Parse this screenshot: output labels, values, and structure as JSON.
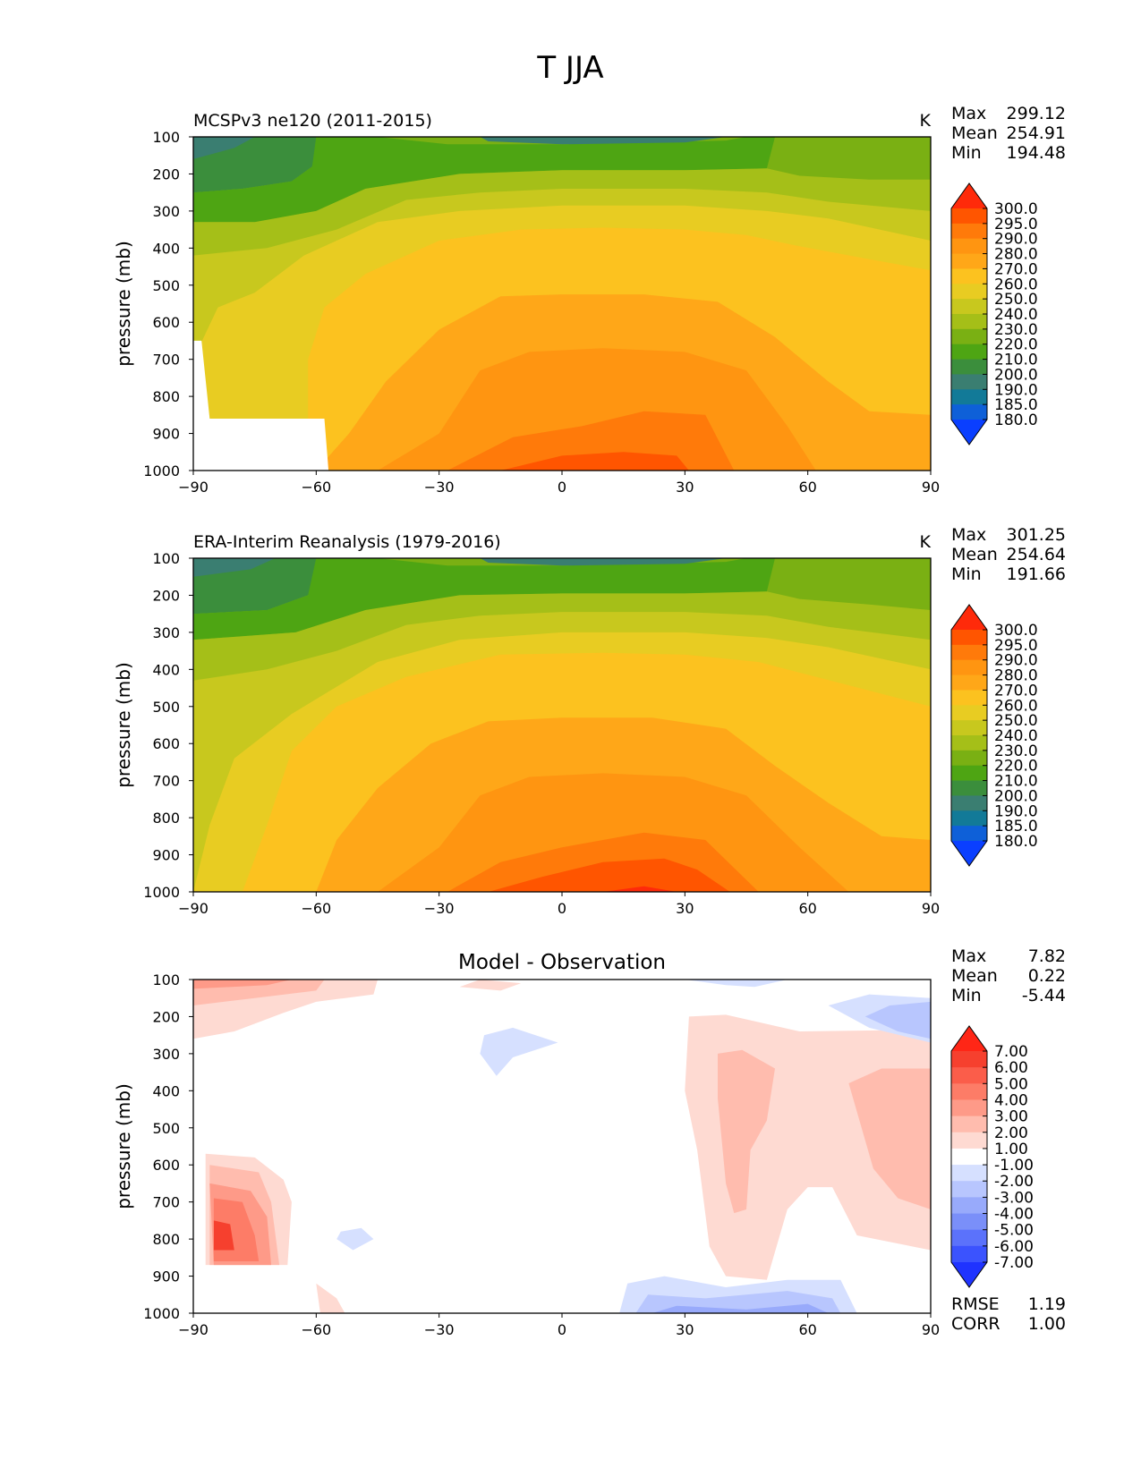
{
  "figure": {
    "title": "T JJA"
  },
  "chart_data": [
    {
      "type": "contour",
      "id": "model",
      "title_left": "MCSPv3 ne120 (2011-2015)",
      "title_center": "",
      "units": "K",
      "ylabel": "pressure (mb)",
      "x_ticks": [
        "−90",
        "−60",
        "−30",
        "0",
        "30",
        "60",
        "90"
      ],
      "y_ticks": [
        "100",
        "200",
        "300",
        "400",
        "500",
        "600",
        "700",
        "800",
        "900",
        "1000"
      ],
      "xlim": [
        -90,
        90
      ],
      "ylim": [
        1000,
        100
      ],
      "stats": [
        {
          "label": "Max",
          "value": "299.12"
        },
        {
          "label": "Mean",
          "value": "254.91"
        },
        {
          "label": "Min",
          "value": "194.48"
        }
      ],
      "colorbar": {
        "levels": [
          "300.0",
          "295.0",
          "290.0",
          "280.0",
          "270.0",
          "260.0",
          "250.0",
          "240.0",
          "230.0",
          "220.0",
          "210.0",
          "200.0",
          "190.0",
          "185.0",
          "180.0"
        ],
        "colors": [
          "#ff2a0a",
          "#ff5500",
          "#ff7a0a",
          "#ff9511",
          "#ffa718",
          "#fcc21f",
          "#e8cc22",
          "#c8c81e",
          "#a5bf18",
          "#7ab013",
          "#4ea513",
          "#3b8e3c",
          "#3a7e71",
          "#127a98",
          "#0e60d8",
          "#0a3fff"
        ]
      }
    },
    {
      "type": "contour",
      "id": "obs",
      "title_left": "ERA-Interim Reanalysis (1979-2016)",
      "title_center": "",
      "units": "K",
      "ylabel": "pressure (mb)",
      "x_ticks": [
        "−90",
        "−60",
        "−30",
        "0",
        "30",
        "60",
        "90"
      ],
      "y_ticks": [
        "100",
        "200",
        "300",
        "400",
        "500",
        "600",
        "700",
        "800",
        "900",
        "1000"
      ],
      "xlim": [
        -90,
        90
      ],
      "ylim": [
        1000,
        100
      ],
      "stats": [
        {
          "label": "Max",
          "value": "301.25"
        },
        {
          "label": "Mean",
          "value": "254.64"
        },
        {
          "label": "Min",
          "value": "191.66"
        }
      ],
      "colorbar": {
        "levels": [
          "300.0",
          "295.0",
          "290.0",
          "280.0",
          "270.0",
          "260.0",
          "250.0",
          "240.0",
          "230.0",
          "220.0",
          "210.0",
          "200.0",
          "190.0",
          "185.0",
          "180.0"
        ],
        "colors": [
          "#ff2a0a",
          "#ff5500",
          "#ff7a0a",
          "#ff9511",
          "#ffa718",
          "#fcc21f",
          "#e8cc22",
          "#c8c81e",
          "#a5bf18",
          "#7ab013",
          "#4ea513",
          "#3b8e3c",
          "#3a7e71",
          "#127a98",
          "#0e60d8",
          "#0a3fff"
        ]
      }
    },
    {
      "type": "contour",
      "id": "diff",
      "title_left": "",
      "title_center": "Model - Observation",
      "units": "",
      "ylabel": "pressure (mb)",
      "x_ticks": [
        "−90",
        "−60",
        "−30",
        "0",
        "30",
        "60",
        "90"
      ],
      "y_ticks": [
        "100",
        "200",
        "300",
        "400",
        "500",
        "600",
        "700",
        "800",
        "900",
        "1000"
      ],
      "xlim": [
        -90,
        90
      ],
      "ylim": [
        1000,
        100
      ],
      "stats": [
        {
          "label": "Max",
          "value": "7.82"
        },
        {
          "label": "Mean",
          "value": "0.22"
        },
        {
          "label": "Min",
          "value": "-5.44"
        }
      ],
      "extra_stats": [
        {
          "label": "RMSE",
          "value": "1.19"
        },
        {
          "label": "CORR",
          "value": "1.00"
        }
      ],
      "colorbar": {
        "levels": [
          "7.00",
          "6.00",
          "5.00",
          "4.00",
          "3.00",
          "2.00",
          "1.00",
          "-1.00",
          "-2.00",
          "-3.00",
          "-4.00",
          "-5.00",
          "-6.00",
          "-7.00"
        ],
        "colors": [
          "#ff2616",
          "#f6402e",
          "#fb5d4a",
          "#fd7c67",
          "#fe9a88",
          "#ffbcae",
          "#fedad2",
          "#ffffff",
          "#d6e0ff",
          "#b8c6fe",
          "#98aafb",
          "#7a8ff9",
          "#5b72fb",
          "#3b53fe",
          "#1f33ff"
        ]
      }
    }
  ]
}
